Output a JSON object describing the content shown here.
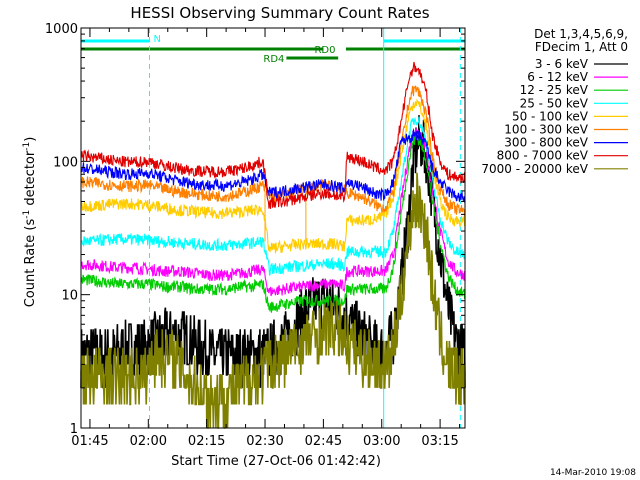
{
  "chart_data": {
    "type": "line",
    "title": "HESSI Observing Summary Count Rates",
    "xlabel": "Start Time (27-Oct-06 01:42:42)",
    "ylabel_main": "Count Rate (s",
    "ylabel_sup1": "-1",
    "ylabel_mid": " detector",
    "ylabel_sup2": "-1",
    "ylabel_end": ")",
    "ylog": true,
    "xlim": [
      102.7,
      201.4
    ],
    "ylim": [
      1,
      1000
    ],
    "x_unit": "minutes since 00:00 UT",
    "x_ticks": [
      {
        "value": 105,
        "label": "01:45"
      },
      {
        "value": 120,
        "label": "02:00"
      },
      {
        "value": 135,
        "label": "02:15"
      },
      {
        "value": 150,
        "label": "02:30"
      },
      {
        "value": 165,
        "label": "02:45"
      },
      {
        "value": 180,
        "label": "03:00"
      },
      {
        "value": 195,
        "label": "03:15"
      }
    ],
    "y_ticks": [
      {
        "value": 1,
        "label": "1"
      },
      {
        "value": 10,
        "label": "10"
      },
      {
        "value": 100,
        "label": "100"
      },
      {
        "value": 1000,
        "label": "1000"
      }
    ],
    "legend": {
      "position": "right",
      "header": [
        "Det 1,3,4,5,6,9,",
        "FDecim 1, Att 0"
      ]
    },
    "series": [
      {
        "name": "3 - 6 keV",
        "color": "#000000",
        "x": [
          102.7,
          110,
          115,
          119,
          122,
          127,
          131,
          134,
          137,
          142,
          146,
          149.5,
          151,
          155,
          158,
          161,
          163.5,
          166,
          168.5,
          170.8,
          174.5,
          178,
          180.5,
          183,
          185,
          187,
          188,
          189,
          190,
          191.5,
          193,
          195,
          197,
          199,
          201.4
        ],
        "y": [
          3.5,
          3.5,
          4,
          4,
          4.5,
          5,
          4.5,
          4,
          3.5,
          3.5,
          3.5,
          3.5,
          3.7,
          4.5,
          6,
          8,
          9,
          9,
          8,
          7,
          5,
          4,
          3.8,
          5,
          12,
          40,
          90,
          130,
          140,
          110,
          55,
          20,
          8,
          4.5,
          3.5
        ]
      },
      {
        "name": "6 - 12 keV",
        "color": "#ff00ff",
        "x": [
          102.7,
          108,
          112,
          116,
          120,
          124,
          128,
          132,
          136,
          140,
          144,
          147,
          149.5,
          151,
          155,
          160,
          165,
          168,
          170.5,
          171,
          175,
          179,
          181,
          183,
          185,
          187,
          188,
          189,
          190,
          191.5,
          193,
          195,
          197,
          199,
          201.4
        ],
        "y": [
          17,
          16.5,
          16,
          16,
          15.5,
          15,
          15,
          14.5,
          14,
          14,
          14.5,
          15,
          15.5,
          10.5,
          11,
          11.5,
          12,
          12,
          11.5,
          15,
          15,
          15,
          15,
          20,
          50,
          120,
          160,
          170,
          160,
          120,
          60,
          30,
          18,
          15,
          14
        ]
      },
      {
        "name": "12 - 25 keV",
        "color": "#00cc00",
        "x": [
          102.7,
          108,
          112,
          116,
          120,
          124,
          128,
          132,
          136,
          140,
          144,
          147,
          149.5,
          151,
          155,
          160,
          165,
          168,
          170.5,
          171,
          175,
          179,
          181,
          183,
          185,
          187,
          188,
          189,
          190,
          191.5,
          193,
          195,
          197,
          199,
          201.4
        ],
        "y": [
          13,
          12.5,
          12,
          12,
          12,
          11.5,
          11.5,
          11,
          11,
          11,
          11.5,
          11.5,
          12,
          8,
          8.5,
          9,
          9,
          9,
          9,
          11,
          11,
          11,
          11,
          16,
          40,
          100,
          140,
          150,
          140,
          100,
          50,
          25,
          14,
          11,
          10
        ]
      },
      {
        "name": "25 - 50 keV",
        "color": "#00ffff",
        "x": [
          102.7,
          108,
          112,
          116,
          120,
          124,
          128,
          132,
          136,
          140,
          144,
          147,
          149.5,
          151,
          155,
          160,
          165,
          168,
          170.5,
          171,
          175,
          179,
          181,
          183,
          185,
          187,
          188,
          189,
          190,
          191.5,
          193,
          195,
          197,
          199,
          201.4
        ],
        "y": [
          25,
          25.5,
          26,
          26,
          25.5,
          25,
          24.5,
          24,
          23.5,
          23.5,
          24,
          24.5,
          25,
          15.5,
          16,
          16.5,
          17,
          17,
          16.5,
          21,
          21,
          21,
          21,
          30,
          70,
          160,
          200,
          210,
          190,
          140,
          70,
          38,
          25,
          21,
          20
        ]
      },
      {
        "name": "50 - 100 keV",
        "color": "#ffcc00",
        "x": [
          102.7,
          108,
          112,
          116,
          120,
          124,
          128,
          132,
          136,
          140,
          144,
          147,
          149.5,
          151,
          155,
          160,
          165,
          168,
          170.5,
          171,
          175,
          179,
          181,
          183,
          185,
          187,
          188,
          189,
          190,
          191.5,
          193,
          195,
          197,
          199,
          201.4
        ],
        "y": [
          46,
          47,
          48,
          48,
          47,
          45,
          43,
          42,
          41,
          41,
          42,
          43,
          44,
          22,
          23,
          24,
          24,
          24,
          23,
          36,
          36,
          37,
          40,
          55,
          110,
          220,
          270,
          280,
          250,
          180,
          90,
          50,
          38,
          36,
          35
        ]
      },
      {
        "name": "100 - 300 keV",
        "color": "#ff8000",
        "x": [
          102.7,
          108,
          112,
          116,
          120,
          124,
          128,
          132,
          136,
          140,
          144,
          147,
          149.5,
          151,
          155,
          160,
          165,
          168,
          170.5,
          171,
          175,
          179,
          181,
          183,
          185,
          187,
          188,
          189,
          190,
          191.5,
          193,
          195,
          197,
          199,
          201.4
        ],
        "y": [
          70,
          68,
          66,
          65,
          66,
          62,
          59,
          57,
          55,
          55,
          58,
          62,
          66,
          54,
          56,
          62,
          66,
          64,
          60,
          58,
          54,
          46,
          45,
          60,
          130,
          280,
          340,
          350,
          310,
          220,
          110,
          62,
          48,
          44,
          42
        ]
      },
      {
        "name": "300 - 800 keV",
        "color": "#0000ff",
        "x": [
          102.7,
          108,
          112,
          116,
          120,
          124,
          128,
          132,
          136,
          140,
          144,
          147,
          149.5,
          151,
          155,
          160,
          165,
          168,
          170.5,
          171,
          175,
          179,
          181,
          183,
          185,
          187,
          188,
          189,
          190,
          191.5,
          193,
          195,
          197,
          199,
          201.4
        ],
        "y": [
          90,
          85,
          82,
          80,
          82,
          76,
          71,
          68,
          66,
          66,
          69,
          74,
          80,
          58,
          60,
          64,
          67,
          65,
          62,
          70,
          64,
          56,
          56,
          70,
          140,
          150,
          155,
          155,
          150,
          130,
          90,
          70,
          60,
          55,
          52
        ]
      },
      {
        "name": "800 - 7000 keV",
        "color": "#e00000",
        "x": [
          102.7,
          108,
          112,
          116,
          120,
          124,
          128,
          132,
          136,
          140,
          144,
          147,
          149.5,
          151,
          155,
          160,
          165,
          168,
          170.5,
          171,
          175,
          179,
          181,
          183,
          185,
          187,
          188,
          189,
          190,
          191.5,
          193,
          195,
          197,
          199,
          201.4
        ],
        "y": [
          110,
          105,
          100,
          98,
          100,
          93,
          88,
          85,
          84,
          84,
          88,
          94,
          100,
          48,
          50,
          54,
          58,
          56,
          52,
          110,
          100,
          88,
          85,
          100,
          200,
          420,
          500,
          510,
          450,
          320,
          160,
          100,
          80,
          76,
          75
        ]
      },
      {
        "name": "7000 - 20000 keV",
        "color": "#808000",
        "x": [
          102.7,
          108,
          112,
          116,
          119.5,
          121,
          126,
          130,
          133,
          136,
          140,
          145,
          149.5,
          151,
          155,
          160,
          165,
          168,
          170.5,
          171,
          175,
          179,
          181,
          183,
          185,
          187,
          188,
          189,
          190,
          191.5,
          193,
          195,
          197,
          199,
          201.4
        ],
        "y": [
          2.5,
          2.5,
          2.5,
          2.5,
          2.5,
          3.5,
          3.5,
          2.5,
          2,
          1.7,
          1.8,
          2.2,
          2.7,
          3,
          3.5,
          4.5,
          5.5,
          5.5,
          5,
          4.5,
          3.5,
          3,
          2.8,
          4,
          10,
          28,
          45,
          50,
          45,
          30,
          12,
          5,
          3,
          2.5,
          2.5
        ]
      }
    ],
    "state_bars": [
      {
        "label": "N",
        "color": "#00ffff",
        "segments": [
          [
            102.7,
            120.3
          ],
          [
            180.5,
            201.4
          ]
        ]
      },
      {
        "label": "RD0",
        "color": "#008000",
        "segments": [
          [
            102.7,
            165
          ],
          [
            170.8,
            201.4
          ]
        ]
      },
      {
        "label": "RD4",
        "color": "#008000",
        "segments": [
          [
            155.5,
            168.8
          ]
        ]
      }
    ],
    "attenuator_lines": [
      150.0,
      160.5
    ],
    "night_lines": [
      120.3,
      180.5,
      200.2
    ]
  },
  "footer_date": "14-Mar-2010 19:08"
}
